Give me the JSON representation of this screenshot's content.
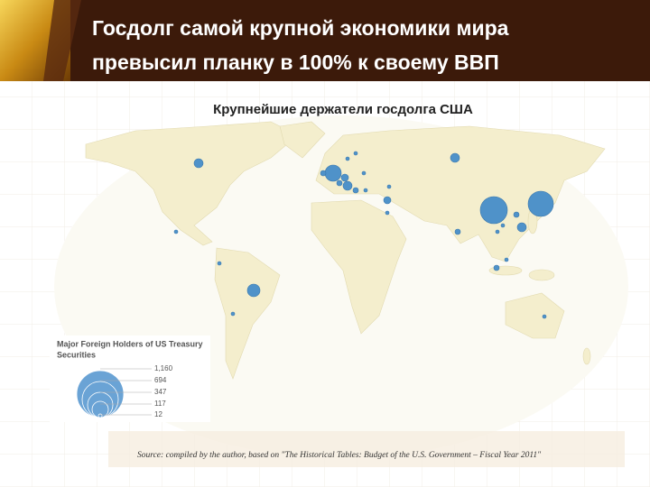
{
  "header": {
    "title_line1": "Госдолг самой крупной экономики мира",
    "title_line2": "превысил планку в 100% к своему ВВП"
  },
  "map": {
    "subtitle": "Крупнейшие держатели госдолга США",
    "legend": {
      "title_line1": "Major Foreign Holders of US Treasury",
      "title_line2": "Securities",
      "labels": [
        "1,160",
        "694",
        "347",
        "117",
        "12"
      ]
    },
    "source": "Source: compiled by the author, based on \"The Historical Tables: Budget of the U.S. Government – Fiscal Year 2011\""
  }
}
